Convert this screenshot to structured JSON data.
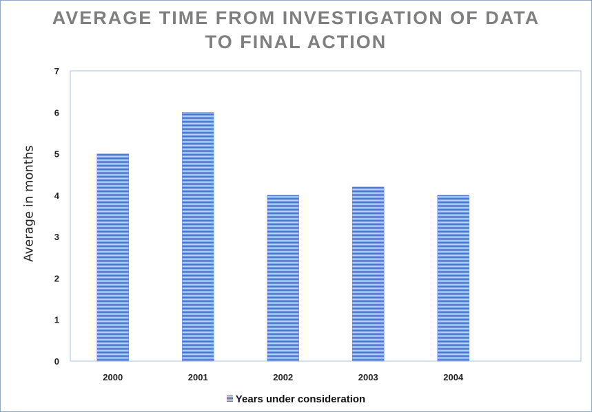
{
  "chart_data": {
    "type": "bar",
    "title": "AVERAGE TIME FROM INVESTIGATION OF DATA TO FINAL ACTION",
    "title_lines": [
      "AVERAGE TIME FROM INVESTIGATION OF DATA",
      "TO FINAL ACTION"
    ],
    "xlabel": "",
    "ylabel": "Average in months",
    "categories": [
      "2000",
      "2001",
      "2002",
      "2003",
      "2004"
    ],
    "series": [
      {
        "name": "Years under consideration",
        "values": [
          5,
          6,
          4,
          4.2,
          4
        ]
      }
    ],
    "ylim": [
      0,
      7
    ],
    "yticks": [
      "0",
      "1",
      "2",
      "3",
      "4",
      "5",
      "6",
      "7"
    ],
    "grid": false,
    "legend": "bottom",
    "colors": {
      "bar_dark": "#4f72c4",
      "bar_light": "#c3d0ec",
      "axis": "#a9bfdf",
      "title": "#7f7f7f"
    }
  }
}
